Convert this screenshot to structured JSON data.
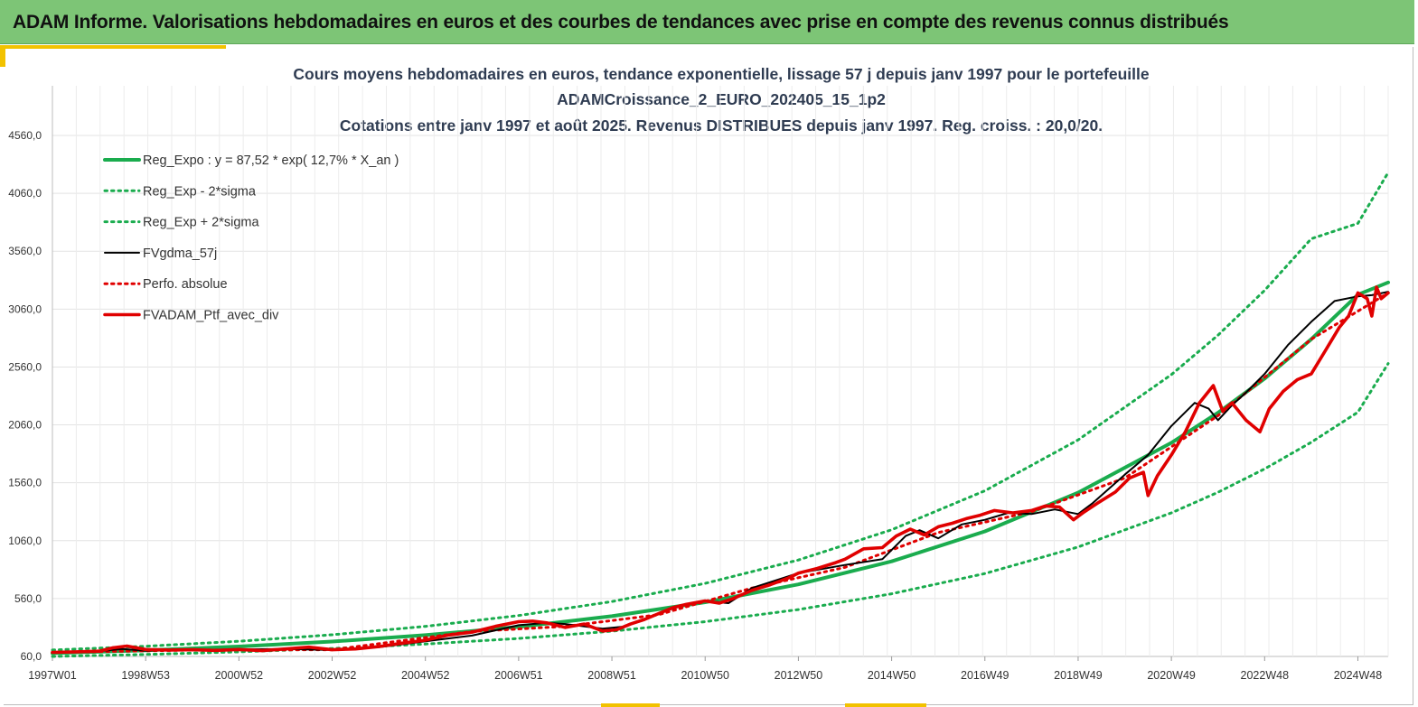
{
  "header": {
    "title": "ADAM Informe. Valorisations hebdomadaires en euros et des courbes de tendances avec prise en compte des revenus connus distribués"
  },
  "colors": {
    "banner": "#7dc576",
    "accent": "#f2c200",
    "title_text": "#2f3c52",
    "reg_expo": "#1aac4e",
    "bands": "#1aac4e",
    "fvgdma": "#000000",
    "perfo": "#e00000",
    "portfolio": "#e00000"
  },
  "chart_data": {
    "type": "line",
    "title_lines": [
      "Cours moyens hebdomadaires  en euros, tendance exponentielle, lissage 57 j depuis janv 1997 pour le portefeuille",
      "ADAMCroissance_2_EURO_202405_15_1p2",
      "Cotations  entre janv 1997 et août 2025. Revenus DISTRIBUES depuis janv 1997. Reg. croiss. : 20,0/20."
    ],
    "x_unit": "year",
    "x_range": [
      1997.0,
      2025.65
    ],
    "ylim": [
      60,
      4560
    ],
    "y_ticks": [
      60,
      560,
      1060,
      1560,
      2060,
      2560,
      3060,
      3560,
      4060,
      4560
    ],
    "y_tick_labels": [
      "60,0",
      "560,0",
      "1060,0",
      "1560,0",
      "2060,0",
      "2560,0",
      "3060,0",
      "3560,0",
      "4060,0",
      "4560,0"
    ],
    "x_ticks": [
      {
        "label": "1997W01",
        "x": 1997.0
      },
      {
        "label": "1998W53",
        "x": 1999.0
      },
      {
        "label": "2000W52",
        "x": 2001.0
      },
      {
        "label": "2002W52",
        "x": 2003.0
      },
      {
        "label": "2004W52",
        "x": 2005.0
      },
      {
        "label": "2006W51",
        "x": 2007.0
      },
      {
        "label": "2008W51",
        "x": 2009.0
      },
      {
        "label": "2010W50",
        "x": 2011.0
      },
      {
        "label": "2012W50",
        "x": 2013.0
      },
      {
        "label": "2014W50",
        "x": 2015.0
      },
      {
        "label": "2016W49",
        "x": 2017.0
      },
      {
        "label": "2018W49",
        "x": 2019.0
      },
      {
        "label": "2020W49",
        "x": 2021.0
      },
      {
        "label": "2022W48",
        "x": 2023.0
      },
      {
        "label": "2024W48",
        "x": 2025.0
      }
    ],
    "grid": true,
    "legend_position": "top-left",
    "series": [
      {
        "name": "Reg_Expo : y = 87,52 * exp( 12,7% *  X_an )",
        "style": "solid-thick",
        "color": "#1aac4e",
        "x": [
          1997,
          1999,
          2001,
          2003,
          2005,
          2007,
          2009,
          2011,
          2013,
          2015,
          2017,
          2019,
          2021,
          2022,
          2023,
          2024,
          2025,
          2025.65
        ],
        "y": [
          88,
          113,
          146,
          189,
          244,
          315,
          408,
          528,
          682,
          881,
          1140,
          1475,
          1905,
          2165,
          2460,
          2800,
          3185,
          3290
        ]
      },
      {
        "name": "Reg_Exp - 2*sigma",
        "style": "dotted",
        "color": "#1aac4e",
        "x": [
          1997,
          1999,
          2001,
          2003,
          2005,
          2007,
          2009,
          2011,
          2013,
          2015,
          2017,
          2019,
          2021,
          2022,
          2023,
          2024,
          2025,
          2025.65
        ],
        "y": [
          60,
          77,
          100,
          129,
          167,
          215,
          278,
          360,
          465,
          601,
          776,
          1005,
          1300,
          1478,
          1680,
          1910,
          2170,
          2590
        ]
      },
      {
        "name": "Reg_Exp + 2*sigma",
        "style": "dotted",
        "color": "#1aac4e",
        "x": [
          1997,
          1999,
          2001,
          2003,
          2005,
          2007,
          2009,
          2011,
          2013,
          2015,
          2017,
          2019,
          2021,
          2022,
          2023,
          2024,
          2025,
          2025.65
        ],
        "y": [
          115,
          148,
          191,
          247,
          320,
          413,
          534,
          691,
          893,
          1154,
          1491,
          1930,
          2494,
          2835,
          3222,
          3668,
          3800,
          4240
        ]
      },
      {
        "name": "FVgdma_57j",
        "style": "solid",
        "color": "#000000",
        "x": [
          1997,
          1997.5,
          1998,
          1998.5,
          1999,
          2000,
          2001,
          2002,
          2003,
          2004,
          2005,
          2006,
          2007,
          2007.6,
          2008,
          2008.8,
          2009.3,
          2010,
          2010.5,
          2011,
          2011.5,
          2012,
          2013,
          2014,
          2014.8,
          2015.3,
          2015.6,
          2016,
          2016.5,
          2017,
          2017.5,
          2018,
          2018.5,
          2019,
          2019.3,
          2020,
          2020.5,
          2021,
          2021.5,
          2021.8,
          2022,
          2022.3,
          2022.6,
          2023,
          2023.5,
          2024,
          2024.5,
          2025,
          2025.3,
          2025.65
        ],
        "y": [
          95,
          100,
          105,
          125,
          110,
          115,
          120,
          125,
          115,
          140,
          190,
          240,
          330,
          350,
          340,
          300,
          320,
          430,
          500,
          540,
          520,
          650,
          780,
          850,
          900,
          1100,
          1150,
          1080,
          1200,
          1240,
          1300,
          1290,
          1330,
          1290,
          1380,
          1630,
          1800,
          2050,
          2250,
          2200,
          2100,
          2230,
          2340,
          2500,
          2750,
          2950,
          3130,
          3170,
          3180,
          3210
        ]
      },
      {
        "name": "Perfo. absolue",
        "style": "dotted",
        "color": "#e00000",
        "x": [
          1997,
          2000,
          2003,
          2006,
          2008,
          2010,
          2012,
          2014,
          2016,
          2018,
          2020,
          2022,
          2024,
          2025.65
        ],
        "y": [
          95,
          115,
          118,
          275,
          320,
          420,
          650,
          830,
          1130,
          1310,
          1600,
          2140,
          2800,
          3200
        ]
      },
      {
        "name": "FVADAM_Ptf_avec_div",
        "style": "solid-thick",
        "color": "#e00000",
        "x": [
          1997,
          1997.5,
          1998,
          1998.3,
          1998.6,
          1999,
          1999.5,
          2000,
          2000.5,
          2001,
          2001.5,
          2002,
          2002.5,
          2003,
          2003.5,
          2004,
          2004.5,
          2005,
          2005.5,
          2006,
          2006.5,
          2007,
          2007.3,
          2007.6,
          2008,
          2008.4,
          2008.8,
          2009.1,
          2009.4,
          2009.7,
          2010,
          2010.3,
          2010.6,
          2011,
          2011.3,
          2011.6,
          2012,
          2012.4,
          2012.8,
          2013,
          2013.4,
          2013.8,
          2014,
          2014.4,
          2014.8,
          2015.1,
          2015.4,
          2015.7,
          2016,
          2016.3,
          2016.6,
          2016.9,
          2017.2,
          2017.6,
          2018,
          2018.3,
          2018.6,
          2018.9,
          2019.1,
          2019.4,
          2019.8,
          2020.1,
          2020.4,
          2020.5,
          2020.7,
          2021,
          2021.3,
          2021.6,
          2021.9,
          2022.1,
          2022.3,
          2022.6,
          2022.9,
          2023.1,
          2023.4,
          2023.7,
          2024,
          2024.3,
          2024.6,
          2024.8,
          2025,
          2025.2,
          2025.3,
          2025.4,
          2025.5,
          2025.65
        ],
        "y": [
          95,
          100,
          105,
          135,
          150,
          120,
          115,
          118,
          112,
          120,
          110,
          125,
          140,
          118,
          125,
          145,
          175,
          200,
          245,
          270,
          320,
          360,
          365,
          350,
          310,
          340,
          280,
          290,
          340,
          380,
          430,
          480,
          510,
          540,
          520,
          560,
          630,
          680,
          740,
          780,
          820,
          870,
          900,
          990,
          1000,
          1100,
          1160,
          1110,
          1180,
          1210,
          1250,
          1280,
          1320,
          1300,
          1320,
          1360,
          1350,
          1240,
          1300,
          1380,
          1480,
          1600,
          1650,
          1450,
          1620,
          1800,
          2000,
          2250,
          2400,
          2180,
          2250,
          2100,
          2000,
          2200,
          2350,
          2450,
          2500,
          2700,
          2900,
          3000,
          3200,
          3150,
          3000,
          3250,
          3150,
          3200
        ]
      }
    ]
  }
}
